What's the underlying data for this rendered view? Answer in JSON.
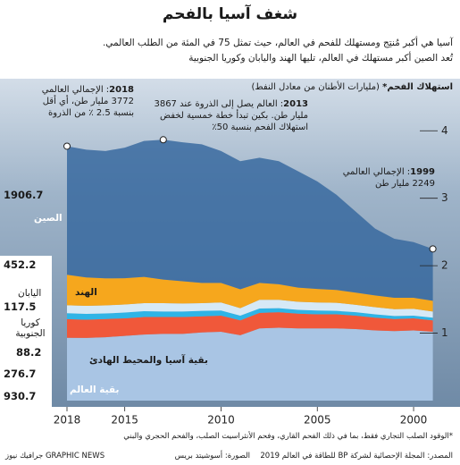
{
  "chart_data": {
    "type": "stacked_area",
    "title": "شغف آسيا بالفحم",
    "subtitle": [
      "آسيا هي أكبر مُنتِج ومستهلك للفحم في العالم، حيث تمثل 75 في المئة من الطلب العالمي.",
      "تُعد الصين أكبر مستهلك في العالم، تليها الهند واليابان وكوريا الجنوبية"
    ],
    "ylabel": "استهلاك الفحم*",
    "yunit": "(مليارات الأطنان من معادل النفط)",
    "x": [
      1999,
      2000,
      2001,
      2002,
      2003,
      2004,
      2005,
      2006,
      2007,
      2008,
      2009,
      2010,
      2011,
      2012,
      2013,
      2014,
      2015,
      2016,
      2017,
      2018
    ],
    "xlim": [
      2018,
      1999
    ],
    "xticks": [
      2018,
      2015,
      2010,
      2005,
      2000
    ],
    "ylim": [
      0,
      4.6
    ],
    "yticks": [
      1,
      2,
      3,
      4
    ],
    "grid": false,
    "series": [
      {
        "name": "بقية العالم",
        "color": "#a9c5e4",
        "values": [
          1.02,
          1.04,
          1.03,
          1.04,
          1.06,
          1.07,
          1.07,
          1.07,
          1.08,
          1.07,
          0.97,
          1.02,
          1.01,
          0.99,
          0.99,
          0.98,
          0.96,
          0.94,
          0.93,
          0.9307
        ],
        "value_labels": [
          null,
          null,
          null,
          null,
          null,
          null,
          null,
          null,
          null,
          null,
          null,
          null,
          null,
          null,
          null,
          null,
          null,
          null,
          null,
          "930.7"
        ]
      },
      {
        "name": "بقية آسيا والمحيط الهادئ",
        "color": "#f0583a",
        "values": [
          0.17,
          0.18,
          0.18,
          0.19,
          0.2,
          0.21,
          0.21,
          0.22,
          0.23,
          0.23,
          0.22,
          0.24,
          0.24,
          0.25,
          0.25,
          0.26,
          0.26,
          0.27,
          0.27,
          0.2767
        ],
        "value_labels": [
          null,
          null,
          null,
          null,
          null,
          null,
          null,
          null,
          null,
          null,
          null,
          null,
          null,
          null,
          null,
          null,
          null,
          null,
          null,
          "276.7"
        ]
      },
      {
        "name": "كوريا الجنوبية",
        "color": "#2fb4e6",
        "values": [
          0.04,
          0.04,
          0.045,
          0.05,
          0.05,
          0.05,
          0.055,
          0.055,
          0.06,
          0.065,
          0.07,
          0.075,
          0.08,
          0.08,
          0.08,
          0.085,
          0.085,
          0.082,
          0.086,
          0.0882
        ],
        "value_labels": [
          null,
          null,
          null,
          null,
          null,
          null,
          null,
          null,
          null,
          null,
          null,
          null,
          null,
          null,
          null,
          null,
          null,
          null,
          null,
          "88.2"
        ]
      },
      {
        "name": "اليابان",
        "color": "#d6e9f6",
        "values": [
          0.09,
          0.1,
          0.1,
          0.105,
          0.11,
          0.12,
          0.12,
          0.12,
          0.125,
          0.13,
          0.11,
          0.12,
          0.115,
          0.12,
          0.125,
          0.12,
          0.12,
          0.12,
          0.12,
          0.1175
        ],
        "value_labels": [
          null,
          null,
          null,
          null,
          null,
          null,
          null,
          null,
          null,
          null,
          null,
          null,
          null,
          null,
          null,
          null,
          null,
          null,
          null,
          "117.5"
        ]
      },
      {
        "name": "الهند",
        "color": "#f6a71d",
        "values": [
          0.16,
          0.165,
          0.17,
          0.175,
          0.18,
          0.19,
          0.2,
          0.21,
          0.23,
          0.25,
          0.28,
          0.29,
          0.3,
          0.33,
          0.35,
          0.39,
          0.39,
          0.4,
          0.42,
          0.4522
        ],
        "value_labels": [
          null,
          null,
          null,
          null,
          null,
          null,
          null,
          null,
          null,
          null,
          null,
          null,
          null,
          null,
          null,
          null,
          null,
          null,
          null,
          "452.2"
        ]
      },
      {
        "name": "الصين",
        "color": "#34679d",
        "values": [
          0.769,
          0.825,
          0.875,
          0.99,
          1.2,
          1.41,
          1.595,
          1.725,
          1.825,
          1.855,
          1.9,
          1.955,
          2.055,
          2.06,
          2.072,
          2.015,
          1.935,
          1.888,
          1.894,
          1.9067
        ],
        "value_labels": [
          null,
          null,
          null,
          null,
          null,
          null,
          null,
          null,
          null,
          null,
          null,
          null,
          null,
          null,
          null,
          null,
          null,
          null,
          null,
          "1906.7"
        ]
      }
    ],
    "annotations": [
      {
        "year": 2018,
        "lines": [
          ": الإجمالي العالمي",
          "3772 مليار طن، أي أقل",
          "بنسبة 2.5 ٪ من الذروة"
        ]
      },
      {
        "year": 2013,
        "lines": [
          ": العالم يصل إلى الذروة عند 3867",
          "مليار طن. بكين تبدأ خطة خمسية لخفض",
          "استهلاك الفحم بنسبة 50٪"
        ]
      },
      {
        "year": 1999,
        "lines": [
          ": الإجمالي العالمي",
          "2249 مليار طن"
        ]
      }
    ],
    "footnote": "*الوقود الصلب التجاري فقط، بما في ذلك الفحم القاري، وفحم الأنثراسيت الصلب، والفحم الحجري والبني",
    "source": "المصدر: المجلة الإحصائية لشركة BP للطاقة في العالم 2019",
    "photo_credit": "الصورة: أسوشيتد بريس",
    "credit": "GRAPHIC NEWS جرافيك نيوز"
  }
}
